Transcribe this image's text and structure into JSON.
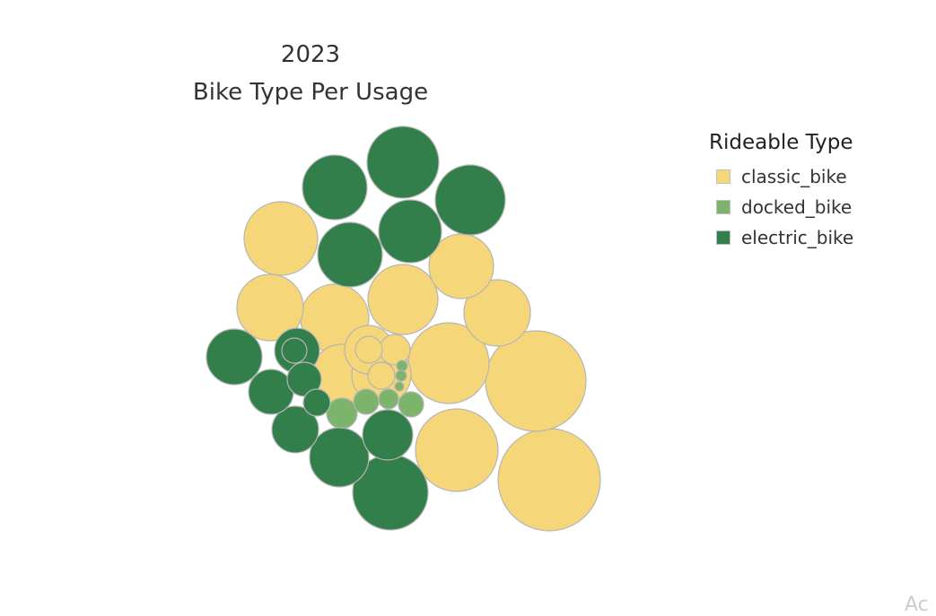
{
  "chart_data": {
    "type": "bubble",
    "title_lines": [
      "2023",
      "Bike Type Per Usage"
    ],
    "legend": {
      "title": "Rideable Type",
      "placement": "top-right",
      "items": [
        {
          "label": "classic_bike",
          "color": "#F5D678"
        },
        {
          "label": "docked_bike",
          "color": "#7DB46C"
        },
        {
          "label": "electric_bike",
          "color": "#337F4C"
        }
      ]
    },
    "series": [
      {
        "name": "classic_bike",
        "color": "#F5D678",
        "relative_sizes": [
          57,
          56,
          46,
          45,
          41,
          39,
          38,
          37,
          37,
          36,
          34,
          33,
          27,
          17,
          15,
          15
        ]
      },
      {
        "name": "docked_bike",
        "color": "#7DB46C",
        "relative_sizes": [
          17,
          14,
          14,
          11,
          6,
          6,
          5
        ]
      },
      {
        "name": "electric_bike",
        "color": "#337F4C",
        "relative_sizes": [
          42,
          40,
          39,
          36,
          36,
          35,
          33,
          31,
          28,
          26,
          25,
          25,
          19,
          15,
          14
        ]
      }
    ]
  },
  "watermark": "Ac"
}
